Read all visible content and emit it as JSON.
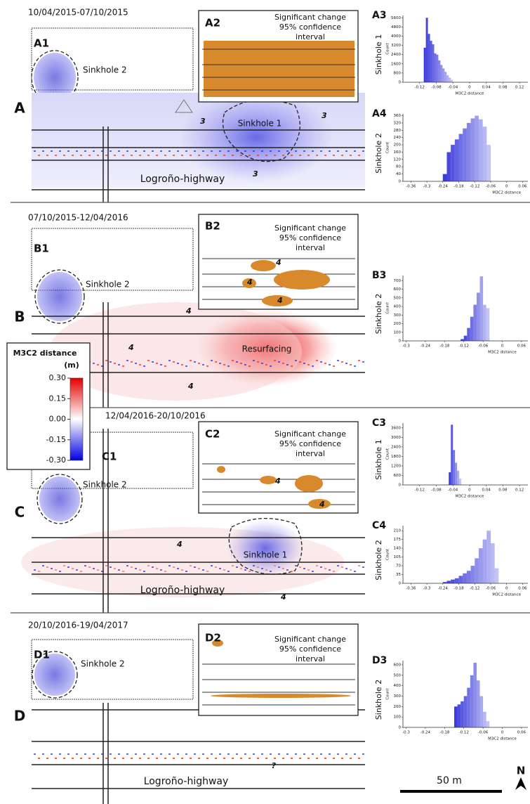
{
  "figure": {
    "panels": [
      {
        "letter": "A",
        "dates": "10/04/2015-07/10/2015",
        "map_label": "A1",
        "inset_label": "A2",
        "inset_text": [
          "Significant change",
          "95% confidence",
          "interval"
        ],
        "annotations": [
          "Sinkhole 2",
          "Sinkhole 1",
          "3",
          "3",
          "3",
          "Logroño-highway"
        ]
      },
      {
        "letter": "B",
        "dates": "07/10/2015-12/04/2016",
        "map_label": "B1",
        "inset_label": "B2",
        "inset_text": [
          "Significant change",
          "95% confidence",
          "interval"
        ],
        "annotations": [
          "Sinkhole 2",
          "4",
          "4",
          "4",
          "Resurfacing"
        ],
        "inset_annotations": [
          "4",
          "4",
          "4"
        ]
      },
      {
        "letter": "C",
        "dates": "12/04/2016-20/10/2016",
        "map_label": "C1",
        "inset_label": "C2",
        "inset_text": [
          "Significant change",
          "95% confidence",
          "interval"
        ],
        "annotations": [
          "Sinkhole 2",
          "4",
          "4",
          "Sinkhole 1",
          "Logroño-highway"
        ],
        "inset_annotations": [
          "4",
          "4"
        ]
      },
      {
        "letter": "D",
        "dates": "20/10/2016-19/04/2017",
        "map_label": "D1",
        "inset_label": "D2",
        "inset_text": [
          "Significant change",
          "95% confidence",
          "interval"
        ],
        "annotations": [
          "Sinkhole 2",
          "?",
          "Logroño-highway"
        ]
      }
    ],
    "colorbar": {
      "title": [
        "M3C2 distance",
        "(m)"
      ],
      "range": [
        -0.3,
        0.3
      ],
      "ticks": [
        {
          "value": 0.3,
          "label": "0.30"
        },
        {
          "value": 0.15,
          "label": "0.15"
        },
        {
          "value": 0,
          "label": "0.00"
        },
        {
          "value": -0.15,
          "label": "-0.15"
        },
        {
          "value": -0.3,
          "label": "-0.30"
        }
      ]
    },
    "scale_bar": "50 m",
    "north": "N"
  },
  "chart_data": [
    {
      "type": "histogram",
      "title": "A3",
      "subject": "Sinkhole 1",
      "ylabel": "Count",
      "xlabel": "M3C2 distance",
      "color": "#3c3cdc",
      "bins": [
        -0.11,
        -0.105,
        -0.1,
        -0.095,
        -0.09,
        -0.085,
        -0.08,
        -0.075,
        -0.07,
        -0.065,
        -0.06,
        -0.055,
        -0.05,
        -0.045,
        -0.04
      ],
      "values": [
        3000,
        5600,
        4200,
        3600,
        3300,
        2500,
        2400,
        1900,
        1500,
        1200,
        900,
        600,
        400,
        200
      ],
      "xlim": [
        -0.16,
        0.14
      ],
      "xticks": [
        -0.12,
        -0.08,
        -0.04,
        0,
        0.04,
        0.08,
        0.12
      ],
      "ylim": [
        0,
        5800
      ],
      "yticks": [
        0,
        800,
        1600,
        2400,
        3200,
        4000,
        4800,
        5600
      ]
    },
    {
      "type": "histogram",
      "title": "A4",
      "subject": "Sinkhole 2",
      "ylabel": "Count",
      "xlabel": "M3C2 distance",
      "color": "#3c3cdc",
      "bins": [
        -0.24,
        -0.225,
        -0.21,
        -0.195,
        -0.18,
        -0.165,
        -0.15,
        -0.135,
        -0.12,
        -0.105,
        -0.09,
        -0.075,
        -0.06
      ],
      "values": [
        40,
        160,
        200,
        230,
        260,
        290,
        320,
        345,
        360,
        340,
        300,
        200
      ],
      "xlim": [
        -0.39,
        0.08
      ],
      "xticks": [
        -0.36,
        -0.3,
        -0.24,
        -0.18,
        -0.12,
        -0.06,
        0,
        0.06
      ],
      "ylim": [
        0,
        370
      ],
      "yticks": [
        0,
        40,
        80,
        120,
        160,
        200,
        240,
        280,
        320,
        360
      ]
    },
    {
      "type": "histogram",
      "title": "B3",
      "subject": "Sinkhole 2",
      "ylabel": "Count",
      "xlabel": "M3C2 distance",
      "color": "#3c3cdc",
      "bins": [
        -0.13,
        -0.12,
        -0.11,
        -0.1,
        -0.09,
        -0.08,
        -0.07,
        -0.06,
        -0.05,
        -0.04
      ],
      "values": [
        20,
        60,
        150,
        280,
        420,
        560,
        750,
        420,
        380
      ],
      "xlim": [
        -0.31,
        0.08
      ],
      "xticks": [
        -0.3,
        -0.24,
        -0.18,
        -0.12,
        -0.06,
        0,
        0.06
      ],
      "ylim": [
        0,
        760
      ],
      "yticks": [
        0,
        100,
        200,
        300,
        400,
        500,
        600,
        700
      ]
    },
    {
      "type": "histogram",
      "title": "C3",
      "subject": "Sinkhole 1",
      "ylabel": "Count",
      "xlabel": "M3C2 distance",
      "color": "#3c3cdc",
      "bins": [
        -0.05,
        -0.045,
        -0.04,
        -0.035,
        -0.03,
        -0.025,
        -0.02
      ],
      "values": [
        800,
        3800,
        2200,
        1400,
        900,
        400
      ],
      "xlim": [
        -0.16,
        0.14
      ],
      "xticks": [
        -0.12,
        -0.08,
        -0.04,
        0,
        0.04,
        0.08,
        0.12
      ],
      "ylim": [
        0,
        3900
      ],
      "yticks": [
        0,
        600,
        1200,
        1800,
        2400,
        3000,
        3600
      ]
    },
    {
      "type": "histogram",
      "title": "C4",
      "subject": "Sinkhole 2",
      "ylabel": "Count",
      "xlabel": "M3C2 distance",
      "color": "#3c3cdc",
      "bins": [
        -0.24,
        -0.225,
        -0.21,
        -0.195,
        -0.18,
        -0.165,
        -0.15,
        -0.135,
        -0.12,
        -0.105,
        -0.09,
        -0.075,
        -0.06,
        -0.045,
        -0.03
      ],
      "values": [
        5,
        10,
        15,
        20,
        30,
        40,
        50,
        70,
        100,
        140,
        175,
        210,
        160,
        60
      ],
      "xlim": [
        -0.39,
        0.08
      ],
      "xticks": [
        -0.36,
        -0.3,
        -0.24,
        -0.18,
        -0.12,
        -0.06,
        0,
        0.06
      ],
      "ylim": [
        0,
        230
      ],
      "yticks": [
        0,
        35,
        70,
        105,
        140,
        175,
        210
      ]
    },
    {
      "type": "histogram",
      "title": "D3",
      "subject": "Sinkhole 2",
      "ylabel": "Count",
      "xlabel": "M3C2 distance",
      "color": "#3c3cdc",
      "bins": [
        -0.15,
        -0.14,
        -0.13,
        -0.12,
        -0.11,
        -0.1,
        -0.09,
        -0.08,
        -0.07,
        -0.06,
        -0.05,
        -0.04
      ],
      "values": [
        200,
        220,
        250,
        300,
        380,
        500,
        620,
        450,
        300,
        150,
        60
      ],
      "xlim": [
        -0.31,
        0.08
      ],
      "xticks": [
        -0.3,
        -0.24,
        -0.18,
        -0.12,
        -0.06,
        0,
        0.06
      ],
      "ylim": [
        0,
        640
      ],
      "yticks": [
        0,
        100,
        200,
        300,
        400,
        500,
        600
      ]
    }
  ]
}
